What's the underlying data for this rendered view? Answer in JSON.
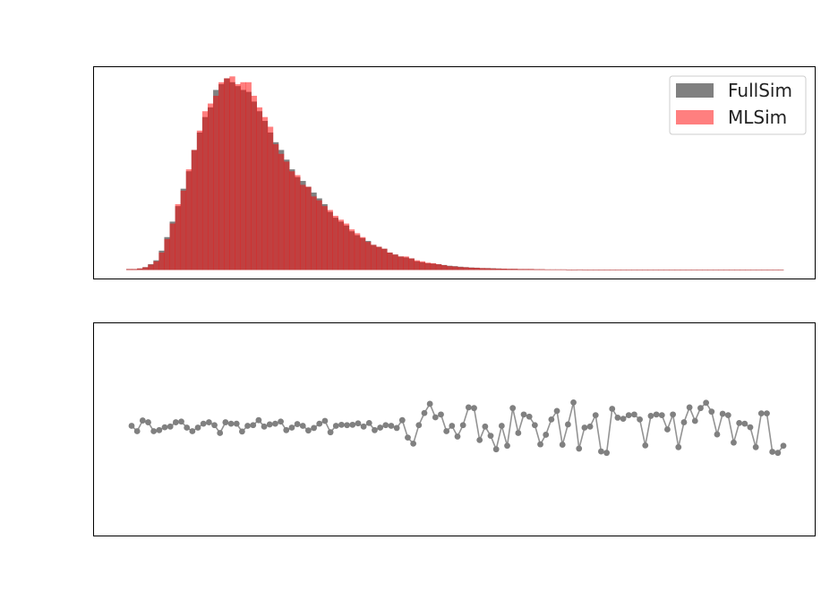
{
  "chart_data": [
    {
      "type": "bar",
      "subtype": "overlaid-histogram",
      "title": "",
      "xlabel": "",
      "ylabel": "",
      "ticks_visible": false,
      "legend_position": "top-right",
      "ylim": [
        0,
        1.05
      ],
      "series": [
        {
          "name": "FullSim",
          "color": "#808080",
          "values": [
            0.005,
            0.005,
            0.008,
            0.015,
            0.03,
            0.05,
            0.1,
            0.17,
            0.25,
            0.33,
            0.42,
            0.51,
            0.62,
            0.71,
            0.79,
            0.84,
            0.93,
            0.96,
            0.99,
            0.97,
            0.95,
            0.93,
            0.92,
            0.87,
            0.82,
            0.77,
            0.71,
            0.66,
            0.62,
            0.57,
            0.52,
            0.48,
            0.46,
            0.43,
            0.4,
            0.37,
            0.34,
            0.3,
            0.27,
            0.25,
            0.23,
            0.2,
            0.18,
            0.165,
            0.15,
            0.13,
            0.12,
            0.11,
            0.09,
            0.08,
            0.07,
            0.065,
            0.06,
            0.045,
            0.04,
            0.035,
            0.033,
            0.03,
            0.026,
            0.022,
            0.02,
            0.017,
            0.015,
            0.013,
            0.012,
            0.01,
            0.01,
            0.009,
            0.008,
            0.007,
            0.006,
            0.006,
            0.005,
            0.005,
            0.005,
            0.004,
            0.004,
            0.003,
            0.003,
            0.003,
            0.003,
            0.002,
            0.002,
            0.002,
            0.002,
            0.002,
            0.002,
            0.002,
            0.002,
            0.002,
            0.002,
            0.002,
            0.002,
            0.002,
            0.002,
            0.002,
            0.002,
            0.002,
            0.002,
            0.002,
            0.002,
            0.002,
            0.002,
            0.002,
            0.002,
            0.002,
            0.002,
            0.002,
            0.002,
            0.002,
            0.002,
            0.002,
            0.002,
            0.002,
            0.002,
            0.002,
            0.002,
            0.002,
            0.002,
            0.002,
            0.002
          ]
        },
        {
          "name": "MLSim",
          "color": "#ff0000",
          "opacity": 0.5,
          "values": [
            0.005,
            0.005,
            0.008,
            0.014,
            0.028,
            0.045,
            0.09,
            0.16,
            0.24,
            0.34,
            0.41,
            0.52,
            0.62,
            0.72,
            0.82,
            0.86,
            0.9,
            0.97,
            0.99,
            1.0,
            0.96,
            0.97,
            0.97,
            0.9,
            0.84,
            0.79,
            0.74,
            0.65,
            0.6,
            0.56,
            0.51,
            0.49,
            0.44,
            0.43,
            0.38,
            0.36,
            0.33,
            0.31,
            0.28,
            0.26,
            0.24,
            0.21,
            0.19,
            0.17,
            0.145,
            0.13,
            0.12,
            0.11,
            0.09,
            0.08,
            0.07,
            0.07,
            0.06,
            0.05,
            0.045,
            0.038,
            0.035,
            0.03,
            0.025,
            0.02,
            0.018,
            0.015,
            0.014,
            0.012,
            0.011,
            0.01,
            0.009,
            0.008,
            0.007,
            0.007,
            0.006,
            0.006,
            0.005,
            0.005,
            0.005,
            0.004,
            0.004,
            0.003,
            0.003,
            0.003,
            0.003,
            0.002,
            0.002,
            0.003,
            0.002,
            0.002,
            0.002,
            0.002,
            0.002,
            0.002,
            0.002,
            0.002,
            0.002,
            0.002,
            0.002,
            0.002,
            0.002,
            0.002,
            0.002,
            0.002,
            0.002,
            0.002,
            0.002,
            0.002,
            0.002,
            0.002,
            0.002,
            0.002,
            0.002,
            0.002,
            0.002,
            0.002,
            0.002,
            0.002,
            0.002,
            0.002,
            0.002,
            0.002,
            0.002,
            0.002,
            0.002
          ]
        }
      ]
    },
    {
      "type": "line",
      "subtype": "ratio",
      "title": "",
      "xlabel": "",
      "ylabel": "",
      "ticks_visible": false,
      "ylim": [
        -3,
        3
      ],
      "series": [
        {
          "color": "#808080",
          "marker": "circle",
          "values": [
            0.1,
            -0.05,
            0.25,
            0.2,
            -0.05,
            -0.02,
            0.06,
            0.08,
            0.2,
            0.22,
            0.05,
            -0.05,
            0.05,
            0.16,
            0.2,
            0.12,
            -0.1,
            0.2,
            0.16,
            0.16,
            -0.06,
            0.1,
            0.12,
            0.26,
            0.08,
            0.14,
            0.16,
            0.22,
            -0.02,
            0.05,
            0.15,
            0.1,
            -0.03,
            0.04,
            0.16,
            0.24,
            -0.08,
            0.1,
            0.13,
            0.12,
            0.13,
            0.17,
            0.08,
            0.18,
            -0.02,
            0.05,
            0.12,
            0.1,
            0.04,
            0.26,
            -0.23,
            -0.4,
            0.12,
            0.46,
            0.72,
            0.34,
            0.42,
            -0.05,
            0.1,
            -0.2,
            0.12,
            0.62,
            0.6,
            -0.3,
            0.08,
            -0.18,
            -0.56,
            0.1,
            -0.46,
            0.6,
            -0.1,
            0.42,
            0.36,
            0.12,
            -0.42,
            -0.15,
            0.28,
            0.52,
            -0.43,
            0.14,
            0.76,
            -0.54,
            0.05,
            0.08,
            0.4,
            -0.62,
            -0.66,
            0.58,
            0.33,
            0.3,
            0.4,
            0.42,
            0.28,
            -0.45,
            0.38,
            0.42,
            0.4,
            0.0,
            0.42,
            -0.5,
            0.2,
            0.62,
            0.24,
            0.6,
            0.75,
            0.5,
            -0.14,
            0.44,
            0.4,
            -0.37,
            0.18,
            0.16,
            0.06,
            -0.5,
            0.45,
            0.45,
            -0.63,
            -0.66,
            -0.46
          ]
        }
      ]
    }
  ]
}
